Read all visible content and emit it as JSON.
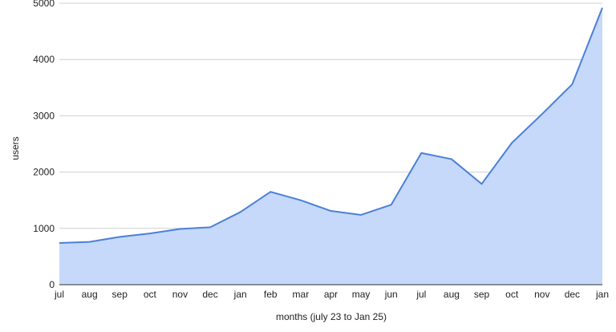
{
  "chart_data": {
    "type": "area",
    "title": "",
    "xlabel": "months (july 23 to Jan 25)",
    "ylabel": "users",
    "categories": [
      "jul",
      "aug",
      "sep",
      "oct",
      "nov",
      "dec",
      "jan",
      "feb",
      "mar",
      "apr",
      "may",
      "jun",
      "jul",
      "aug",
      "sep",
      "oct",
      "nov",
      "dec",
      "jan"
    ],
    "series": [
      {
        "values": [
          740,
          760,
          850,
          910,
          990,
          1020,
          1290,
          1650,
          1500,
          1310,
          1240,
          1420,
          2340,
          2230,
          1790,
          2520,
          3030,
          3560,
          4920
        ]
      }
    ],
    "ylim": [
      0,
      5000
    ],
    "yticks": [
      0,
      1000,
      2000,
      3000,
      4000,
      5000
    ],
    "grid": true,
    "legend": "none",
    "colors": {
      "line": "#4a80d9",
      "fill": "#c6d9fa",
      "grid": "#d0d0d0",
      "axis": "#333333"
    }
  }
}
